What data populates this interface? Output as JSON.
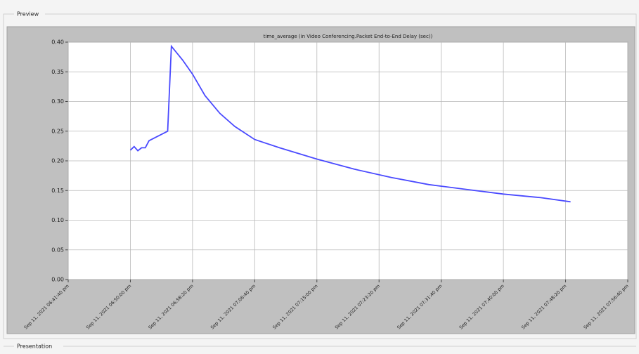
{
  "window": {
    "preview_label": "Preview",
    "presentation_label": "Presentation"
  },
  "chart_data": {
    "type": "line",
    "title": "time_average (in Video Conferencing.Packet End-to-End Delay (sec))",
    "x": [
      "2021-09-11T18:50:00",
      "2021-09-11T18:50:30",
      "2021-09-11T18:51:00",
      "2021-09-11T18:51:30",
      "2021-09-11T18:52:00",
      "2021-09-11T18:52:30",
      "2021-09-11T18:55:00",
      "2021-09-11T18:55:30",
      "2021-09-11T18:57:00",
      "2021-09-11T18:58:20",
      "2021-09-11T19:00:00",
      "2021-09-11T19:02:00",
      "2021-09-11T19:04:00",
      "2021-09-11T19:06:40",
      "2021-09-11T19:10:00",
      "2021-09-11T19:15:00",
      "2021-09-11T19:20:00",
      "2021-09-11T19:25:00",
      "2021-09-11T19:30:00",
      "2021-09-11T19:35:00",
      "2021-09-11T19:40:00",
      "2021-09-11T19:45:00",
      "2021-09-11T19:49:00"
    ],
    "series": [
      {
        "name": "time_average",
        "color": "#4a4aff",
        "values": [
          0.218,
          0.224,
          0.217,
          0.222,
          0.222,
          0.234,
          0.25,
          0.393,
          0.37,
          0.346,
          0.31,
          0.28,
          0.258,
          0.236,
          0.222,
          0.203,
          0.186,
          0.172,
          0.16,
          0.152,
          0.144,
          0.138,
          0.131
        ]
      }
    ],
    "xlim": [
      "2021-09-11T18:41:40",
      "2021-09-11T19:56:40"
    ],
    "xticks": [
      {
        "value": "2021-09-11T18:41:40",
        "label": "Sep 11, 2021 06:41:40 pm"
      },
      {
        "value": "2021-09-11T18:50:00",
        "label": "Sep 11, 2021 06:50:00 pm"
      },
      {
        "value": "2021-09-11T18:58:20",
        "label": "Sep 11, 2021 06:58:20 pm"
      },
      {
        "value": "2021-09-11T19:06:40",
        "label": "Sep 11, 2021 07:06:40 pm"
      },
      {
        "value": "2021-09-11T19:15:00",
        "label": "Sep 11, 2021 07:15:00 pm"
      },
      {
        "value": "2021-09-11T19:23:20",
        "label": "Sep 11, 2021 07:23:20 pm"
      },
      {
        "value": "2021-09-11T19:31:40",
        "label": "Sep 11, 2021 07:31:40 pm"
      },
      {
        "value": "2021-09-11T19:40:00",
        "label": "Sep 11, 2021 07:40:00 pm"
      },
      {
        "value": "2021-09-11T19:48:20",
        "label": "Sep 11, 2021 07:48:20 pm"
      },
      {
        "value": "2021-09-11T19:56:40",
        "label": "Sep 11, 2021 07:56:40 pm"
      }
    ],
    "ylim": [
      0,
      0.4
    ],
    "yticks": [
      {
        "value": 0,
        "label": "0.00"
      },
      {
        "value": 0.05,
        "label": "0.05"
      },
      {
        "value": 0.1,
        "label": "0.10"
      },
      {
        "value": 0.15,
        "label": "0.15"
      },
      {
        "value": 0.2,
        "label": "0.20"
      },
      {
        "value": 0.25,
        "label": "0.25"
      },
      {
        "value": 0.3,
        "label": "0.30"
      },
      {
        "value": 0.35,
        "label": "0.35"
      },
      {
        "value": 0.4,
        "label": "0.40"
      }
    ],
    "grid": true
  }
}
